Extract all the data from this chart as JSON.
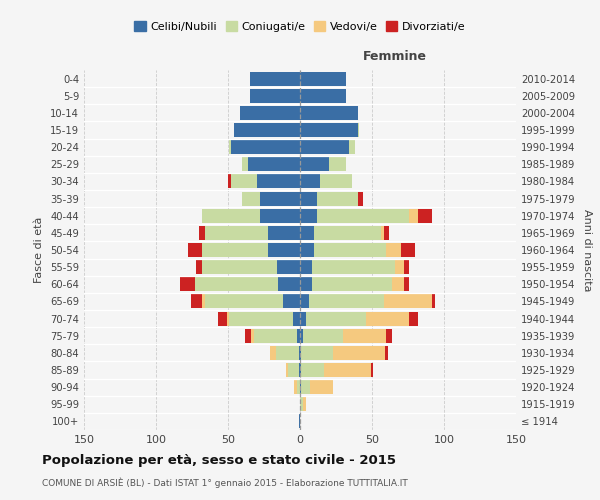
{
  "age_groups": [
    "100+",
    "95-99",
    "90-94",
    "85-89",
    "80-84",
    "75-79",
    "70-74",
    "65-69",
    "60-64",
    "55-59",
    "50-54",
    "45-49",
    "40-44",
    "35-39",
    "30-34",
    "25-29",
    "20-24",
    "15-19",
    "10-14",
    "5-9",
    "0-4"
  ],
  "birth_years": [
    "≤ 1914",
    "1915-1919",
    "1920-1924",
    "1925-1929",
    "1930-1934",
    "1935-1939",
    "1940-1944",
    "1945-1949",
    "1950-1954",
    "1955-1959",
    "1960-1964",
    "1965-1969",
    "1970-1974",
    "1975-1979",
    "1980-1984",
    "1985-1989",
    "1990-1994",
    "1995-1999",
    "2000-2004",
    "2005-2009",
    "2010-2014"
  ],
  "males": {
    "celibi": [
      1,
      0,
      0,
      1,
      1,
      2,
      5,
      12,
      15,
      16,
      22,
      22,
      28,
      28,
      30,
      36,
      48,
      46,
      42,
      35,
      35
    ],
    "coniugati": [
      0,
      0,
      2,
      7,
      16,
      30,
      44,
      54,
      58,
      52,
      46,
      44,
      40,
      12,
      18,
      4,
      1,
      0,
      0,
      0,
      0
    ],
    "vedovi": [
      0,
      0,
      2,
      2,
      4,
      2,
      2,
      2,
      0,
      0,
      0,
      0,
      0,
      0,
      0,
      0,
      0,
      0,
      0,
      0,
      0
    ],
    "divorziati": [
      0,
      0,
      0,
      0,
      0,
      4,
      6,
      8,
      10,
      4,
      10,
      4,
      0,
      0,
      2,
      0,
      0,
      0,
      0,
      0,
      0
    ]
  },
  "females": {
    "nubili": [
      0,
      0,
      1,
      1,
      1,
      2,
      4,
      6,
      8,
      8,
      10,
      10,
      12,
      12,
      14,
      20,
      34,
      40,
      40,
      32,
      32
    ],
    "coniugate": [
      0,
      2,
      6,
      16,
      22,
      28,
      42,
      52,
      56,
      58,
      50,
      46,
      64,
      28,
      22,
      12,
      4,
      1,
      0,
      0,
      0
    ],
    "vedove": [
      0,
      2,
      16,
      32,
      36,
      30,
      30,
      34,
      8,
      6,
      10,
      2,
      6,
      0,
      0,
      0,
      0,
      0,
      0,
      0,
      0
    ],
    "divorziate": [
      0,
      0,
      0,
      2,
      2,
      4,
      6,
      2,
      4,
      4,
      10,
      4,
      10,
      4,
      0,
      0,
      0,
      0,
      0,
      0,
      0
    ]
  },
  "colors": {
    "celibi": "#3a6ea5",
    "coniugati": "#c8dba2",
    "vedovi": "#f5c97f",
    "divorziati": "#cc2222"
  },
  "xlim": 150,
  "title": "Popolazione per età, sesso e stato civile - 2015",
  "subtitle": "COMUNE DI ARSIÈ (BL) - Dati ISTAT 1° gennaio 2015 - Elaborazione TUTTITALIA.IT",
  "ylabel_left": "Fasce di età",
  "ylabel_right": "Anni di nascita",
  "bg_color": "#f5f5f5",
  "grid_color": "#cccccc"
}
